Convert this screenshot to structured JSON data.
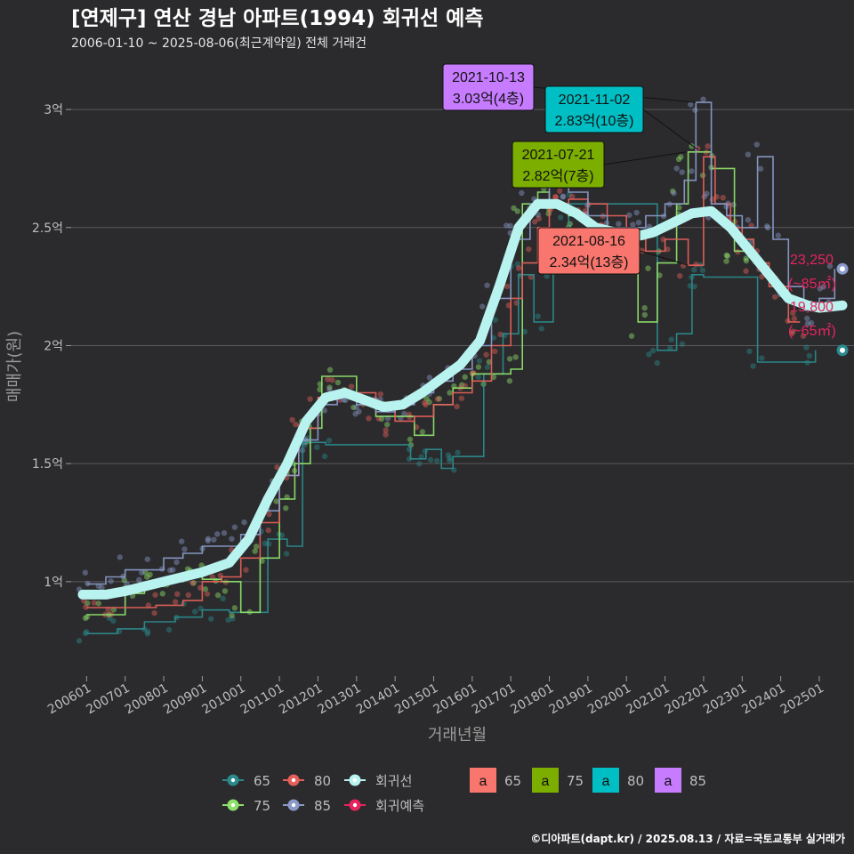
{
  "title": "[연제구] 연산 경남 아파트(1994) 회귀선 예측",
  "subtitle": "2006-01-10 ~ 2025-08-06(최근계약일) 전체 거래건",
  "footer": "©디아파트(dapt.kr) / 2025.08.13 / 자료=국토교통부 실거래가",
  "colors": {
    "s65": "#2a8a8c",
    "s75": "#8ee06a",
    "s80": "#e5605a",
    "s85": "#8a9ac8",
    "trend": "#b8f3f0",
    "forecast": "#e8245f",
    "callout65": "#f8766d",
    "callout75": "#7cae00",
    "callout80": "#00bfc4",
    "callout85": "#c77cff"
  },
  "chart_data": {
    "type": "line",
    "xlabel": "거래년월",
    "ylabel": "매매가(원)",
    "x_range": [
      2005.6,
      2025.9
    ],
    "ylim": [
      0.6,
      3.2
    ],
    "x_ticks": [
      {
        "v": 2006,
        "label": "200601"
      },
      {
        "v": 2007,
        "label": "200701"
      },
      {
        "v": 2008,
        "label": "200801"
      },
      {
        "v": 2009,
        "label": "200901"
      },
      {
        "v": 2010,
        "label": "201001"
      },
      {
        "v": 2011,
        "label": "201101"
      },
      {
        "v": 2012,
        "label": "201201"
      },
      {
        "v": 2013,
        "label": "201301"
      },
      {
        "v": 2014,
        "label": "201401"
      },
      {
        "v": 2015,
        "label": "201501"
      },
      {
        "v": 2016,
        "label": "201601"
      },
      {
        "v": 2017,
        "label": "201701"
      },
      {
        "v": 2018,
        "label": "201801"
      },
      {
        "v": 2019,
        "label": "201901"
      },
      {
        "v": 2020,
        "label": "202001"
      },
      {
        "v": 2021,
        "label": "202101"
      },
      {
        "v": 2022,
        "label": "202201"
      },
      {
        "v": 2023,
        "label": "202301"
      },
      {
        "v": 2024,
        "label": "202401"
      },
      {
        "v": 2025,
        "label": "202501"
      }
    ],
    "y_ticks": [
      {
        "v": 1.0,
        "label": "1억"
      },
      {
        "v": 1.5,
        "label": "1.5억"
      },
      {
        "v": 2.0,
        "label": "2억"
      },
      {
        "v": 2.5,
        "label": "2.5억"
      },
      {
        "v": 3.0,
        "label": "3억"
      }
    ],
    "series": [
      {
        "name": "65",
        "color_key": "s65",
        "points": [
          [
            2006.0,
            0.78
          ],
          [
            2006.8,
            0.8
          ],
          [
            2007.5,
            0.83
          ],
          [
            2008.3,
            0.85
          ],
          [
            2009.0,
            0.88
          ],
          [
            2009.7,
            0.87
          ],
          [
            2010.7,
            1.18
          ],
          [
            2011.2,
            1.15
          ],
          [
            2011.6,
            1.59
          ],
          [
            2012.2,
            1.58
          ],
          [
            2014.4,
            1.52
          ],
          [
            2014.8,
            1.56
          ],
          [
            2015.2,
            1.48
          ],
          [
            2015.5,
            1.53
          ],
          [
            2016.3,
            1.88
          ],
          [
            2016.8,
            2.05
          ],
          [
            2017.2,
            2.3
          ],
          [
            2017.6,
            2.1
          ],
          [
            2018.1,
            2.35
          ],
          [
            2018.5,
            2.6
          ],
          [
            2020.8,
            1.98
          ],
          [
            2021.3,
            2.05
          ],
          [
            2021.7,
            2.3
          ],
          [
            2022.0,
            2.29
          ],
          [
            2023.4,
            1.93
          ],
          [
            2024.9,
            1.98
          ]
        ]
      },
      {
        "name": "75",
        "color_key": "s75",
        "points": [
          [
            2006.0,
            0.86
          ],
          [
            2006.5,
            0.86
          ],
          [
            2007.0,
            0.95
          ],
          [
            2007.5,
            0.98
          ],
          [
            2008.0,
            1.0
          ],
          [
            2008.5,
            1.02
          ],
          [
            2009.0,
            1.01
          ],
          [
            2009.5,
            1.0
          ],
          [
            2010.0,
            0.87
          ],
          [
            2010.5,
            1.1
          ],
          [
            2011.0,
            1.35
          ],
          [
            2011.4,
            1.5
          ],
          [
            2011.8,
            1.65
          ],
          [
            2012.1,
            1.87
          ],
          [
            2012.5,
            1.87
          ],
          [
            2013.0,
            1.77
          ],
          [
            2013.5,
            1.7
          ],
          [
            2014.0,
            1.7
          ],
          [
            2014.5,
            1.62
          ],
          [
            2015.0,
            1.75
          ],
          [
            2015.5,
            1.82
          ],
          [
            2016.0,
            1.88
          ],
          [
            2016.5,
            1.88
          ],
          [
            2017.0,
            1.9
          ],
          [
            2017.3,
            2.6
          ],
          [
            2017.7,
            2.65
          ],
          [
            2018.0,
            2.6
          ],
          [
            2018.5,
            2.55
          ],
          [
            2019.0,
            2.45
          ],
          [
            2019.5,
            2.35
          ],
          [
            2020.3,
            2.1
          ],
          [
            2020.8,
            2.35
          ],
          [
            2021.3,
            2.6
          ],
          [
            2021.6,
            2.82
          ],
          [
            2022.2,
            2.75
          ],
          [
            2022.8,
            2.4
          ],
          [
            2023.3,
            2.38
          ]
        ]
      },
      {
        "name": "80",
        "color_key": "s80",
        "points": [
          [
            2006.0,
            0.89
          ],
          [
            2006.5,
            0.89
          ],
          [
            2007.8,
            0.9
          ],
          [
            2008.5,
            0.92
          ],
          [
            2009.0,
            1.0
          ],
          [
            2009.5,
            1.02
          ],
          [
            2010.0,
            1.1
          ],
          [
            2010.5,
            1.25
          ],
          [
            2011.0,
            1.45
          ],
          [
            2011.5,
            1.65
          ],
          [
            2012.0,
            1.78
          ],
          [
            2012.5,
            1.8
          ],
          [
            2013.0,
            1.8
          ],
          [
            2013.5,
            1.75
          ],
          [
            2014.0,
            1.68
          ],
          [
            2014.5,
            1.7
          ],
          [
            2015.0,
            1.75
          ],
          [
            2015.5,
            1.8
          ],
          [
            2016.0,
            1.85
          ],
          [
            2016.5,
            2.0
          ],
          [
            2017.0,
            2.2
          ],
          [
            2017.3,
            2.35
          ],
          [
            2017.7,
            2.5
          ],
          [
            2018.0,
            2.6
          ],
          [
            2018.5,
            2.62
          ],
          [
            2019.0,
            2.6
          ],
          [
            2019.5,
            2.55
          ],
          [
            2020.0,
            2.45
          ],
          [
            2020.5,
            2.4
          ],
          [
            2021.0,
            2.45
          ],
          [
            2021.6,
            2.34
          ],
          [
            2022.0,
            2.8
          ],
          [
            2022.3,
            2.6
          ],
          [
            2022.7,
            2.5
          ],
          [
            2023.0,
            2.45
          ],
          [
            2023.3,
            2.35
          ],
          [
            2023.7,
            2.25
          ],
          [
            2024.2,
            2.1
          ],
          [
            2024.5,
            2.1
          ]
        ]
      },
      {
        "name": "85",
        "color_key": "s85",
        "points": [
          [
            2006.0,
            0.99
          ],
          [
            2006.5,
            1.02
          ],
          [
            2007.0,
            1.05
          ],
          [
            2007.5,
            1.05
          ],
          [
            2008.0,
            1.1
          ],
          [
            2008.5,
            1.12
          ],
          [
            2009.0,
            1.15
          ],
          [
            2009.5,
            1.15
          ],
          [
            2010.0,
            1.2
          ],
          [
            2010.5,
            1.3
          ],
          [
            2011.0,
            1.45
          ],
          [
            2011.5,
            1.6
          ],
          [
            2012.0,
            1.75
          ],
          [
            2012.5,
            1.78
          ],
          [
            2013.0,
            1.75
          ],
          [
            2013.5,
            1.72
          ],
          [
            2014.0,
            1.75
          ],
          [
            2014.5,
            1.8
          ],
          [
            2015.0,
            1.85
          ],
          [
            2015.5,
            1.9
          ],
          [
            2016.0,
            2.0
          ],
          [
            2016.5,
            2.2
          ],
          [
            2017.0,
            2.45
          ],
          [
            2017.5,
            2.6
          ],
          [
            2018.0,
            2.75
          ],
          [
            2018.5,
            2.65
          ],
          [
            2019.0,
            2.55
          ],
          [
            2019.5,
            2.5
          ],
          [
            2020.0,
            2.5
          ],
          [
            2020.5,
            2.55
          ],
          [
            2021.0,
            2.6
          ],
          [
            2021.5,
            2.7
          ],
          [
            2021.8,
            3.03
          ],
          [
            2022.2,
            2.6
          ],
          [
            2022.6,
            2.55
          ],
          [
            2023.0,
            2.5
          ],
          [
            2023.4,
            2.8
          ],
          [
            2023.8,
            2.45
          ],
          [
            2024.2,
            2.25
          ],
          [
            2024.6,
            2.15
          ],
          [
            2025.0,
            2.2
          ],
          [
            2025.4,
            2.325
          ]
        ]
      }
    ],
    "trend": {
      "name": "회귀선",
      "color_key": "trend",
      "points": [
        [
          2005.9,
          0.945
        ],
        [
          2006.5,
          0.945
        ],
        [
          2007.0,
          0.96
        ],
        [
          2008.0,
          1.0
        ],
        [
          2009.0,
          1.04
        ],
        [
          2009.7,
          1.08
        ],
        [
          2010.2,
          1.18
        ],
        [
          2010.7,
          1.35
        ],
        [
          2011.2,
          1.5
        ],
        [
          2011.7,
          1.68
        ],
        [
          2012.2,
          1.78
        ],
        [
          2012.7,
          1.8
        ],
        [
          2013.2,
          1.77
        ],
        [
          2013.7,
          1.74
        ],
        [
          2014.2,
          1.75
        ],
        [
          2014.7,
          1.8
        ],
        [
          2015.2,
          1.86
        ],
        [
          2015.7,
          1.92
        ],
        [
          2016.2,
          2.02
        ],
        [
          2016.7,
          2.25
        ],
        [
          2017.2,
          2.5
        ],
        [
          2017.7,
          2.6
        ],
        [
          2018.2,
          2.6
        ],
        [
          2018.7,
          2.56
        ],
        [
          2019.2,
          2.5
        ],
        [
          2019.7,
          2.48
        ],
        [
          2020.2,
          2.46
        ],
        [
          2020.7,
          2.48
        ],
        [
          2021.2,
          2.52
        ],
        [
          2021.7,
          2.56
        ],
        [
          2022.2,
          2.57
        ],
        [
          2022.7,
          2.5
        ],
        [
          2023.2,
          2.4
        ],
        [
          2023.7,
          2.3
        ],
        [
          2024.2,
          2.2
        ],
        [
          2024.7,
          2.17
        ],
        [
          2025.0,
          2.16
        ],
        [
          2025.6,
          2.17
        ]
      ]
    },
    "forecast": [
      {
        "label_value": "23,250",
        "label_unit": "(~85㎡)",
        "x": 2025.6,
        "y": 2.325
      },
      {
        "label_value": "19,800",
        "label_unit": "(~65㎡)",
        "x": 2025.6,
        "y": 1.98
      }
    ],
    "scatter_series": [
      "s65",
      "s75",
      "s80",
      "s85"
    ],
    "callouts": [
      {
        "date": "2021-10-13",
        "price": "3.03억(4층)",
        "color_key": "callout85",
        "x": 2021.8,
        "y": 3.03,
        "anchor": "left"
      },
      {
        "date": "2021-11-02",
        "price": "2.83억(10층)",
        "color_key": "callout80",
        "x": 2021.85,
        "y": 2.83,
        "anchor": "center"
      },
      {
        "date": "2021-07-21",
        "price": "2.82억(7층)",
        "color_key": "callout75",
        "x": 2021.55,
        "y": 2.82,
        "anchor": "left"
      },
      {
        "date": "2021-08-16",
        "price": "2.34억(13층)",
        "color_key": "callout65",
        "x": 2021.6,
        "y": 2.34,
        "anchor": "center"
      }
    ],
    "legend": {
      "line_items": [
        {
          "label": "65",
          "color_key": "s65"
        },
        {
          "label": "80",
          "color_key": "s80"
        },
        {
          "label": "회귀선",
          "color_key": "trend"
        },
        {
          "label": "75",
          "color_key": "s75"
        },
        {
          "label": "85",
          "color_key": "s85"
        },
        {
          "label": "회귀예측",
          "color_key": "forecast"
        }
      ],
      "box_items": [
        {
          "glyph": "a",
          "label": "65",
          "color_key": "callout65"
        },
        {
          "glyph": "a",
          "label": "75",
          "color_key": "callout75"
        },
        {
          "glyph": "a",
          "label": "80",
          "color_key": "callout80"
        },
        {
          "glyph": "a",
          "label": "85",
          "color_key": "callout85"
        }
      ]
    }
  }
}
